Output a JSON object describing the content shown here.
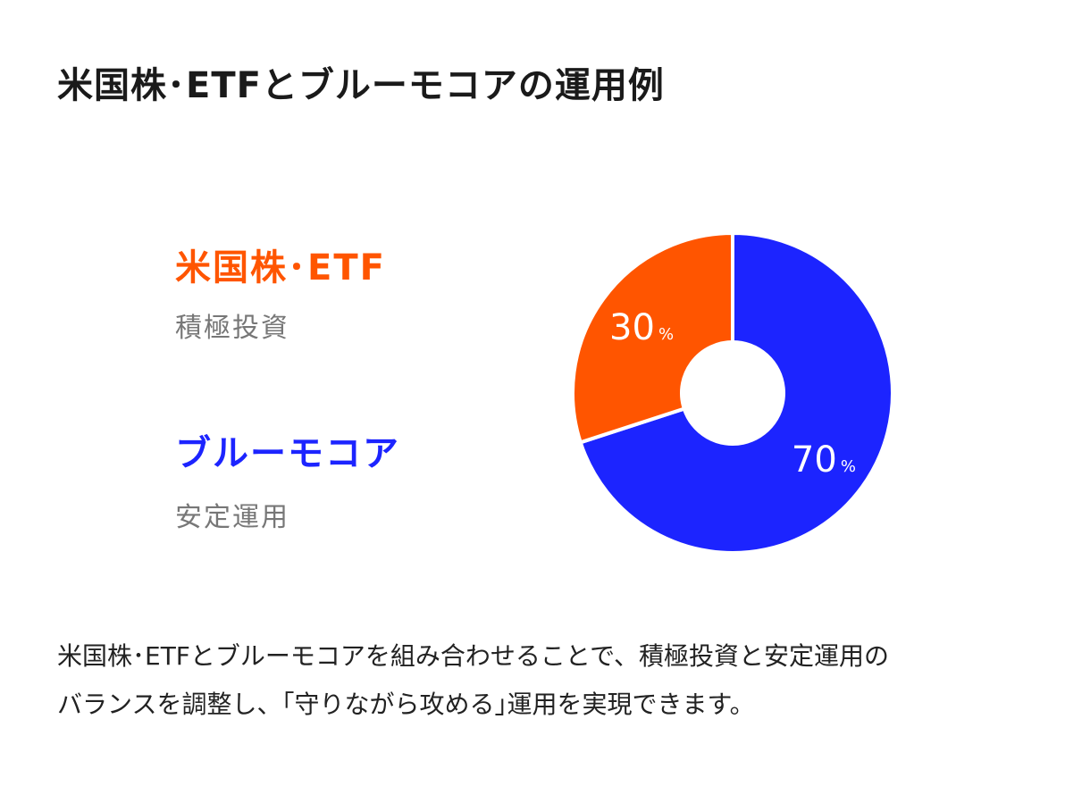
{
  "title": "米国株･ETFとブルーモコアの運用例",
  "legend": [
    {
      "name": "米国株･ETF",
      "desc": "積極投資",
      "color": "#ff5500"
    },
    {
      "name": "ブルーモコア",
      "desc": "安定運用",
      "color": "#1c24ff"
    }
  ],
  "chart_data": {
    "type": "pie",
    "donut": true,
    "slices": [
      {
        "label": "米国株･ETF",
        "value": 30,
        "display": "30",
        "unit": "%",
        "color": "#ff5500"
      },
      {
        "label": "ブルーモコア",
        "value": 70,
        "display": "70",
        "unit": "%",
        "color": "#1c24ff"
      }
    ]
  },
  "description": {
    "line1": "米国株･ETFとブルーモコアを組み合わせることで、積極投資と安定運用の",
    "line2": "バランスを調整し、｢守りながら攻める｣運用を実現できます。"
  }
}
